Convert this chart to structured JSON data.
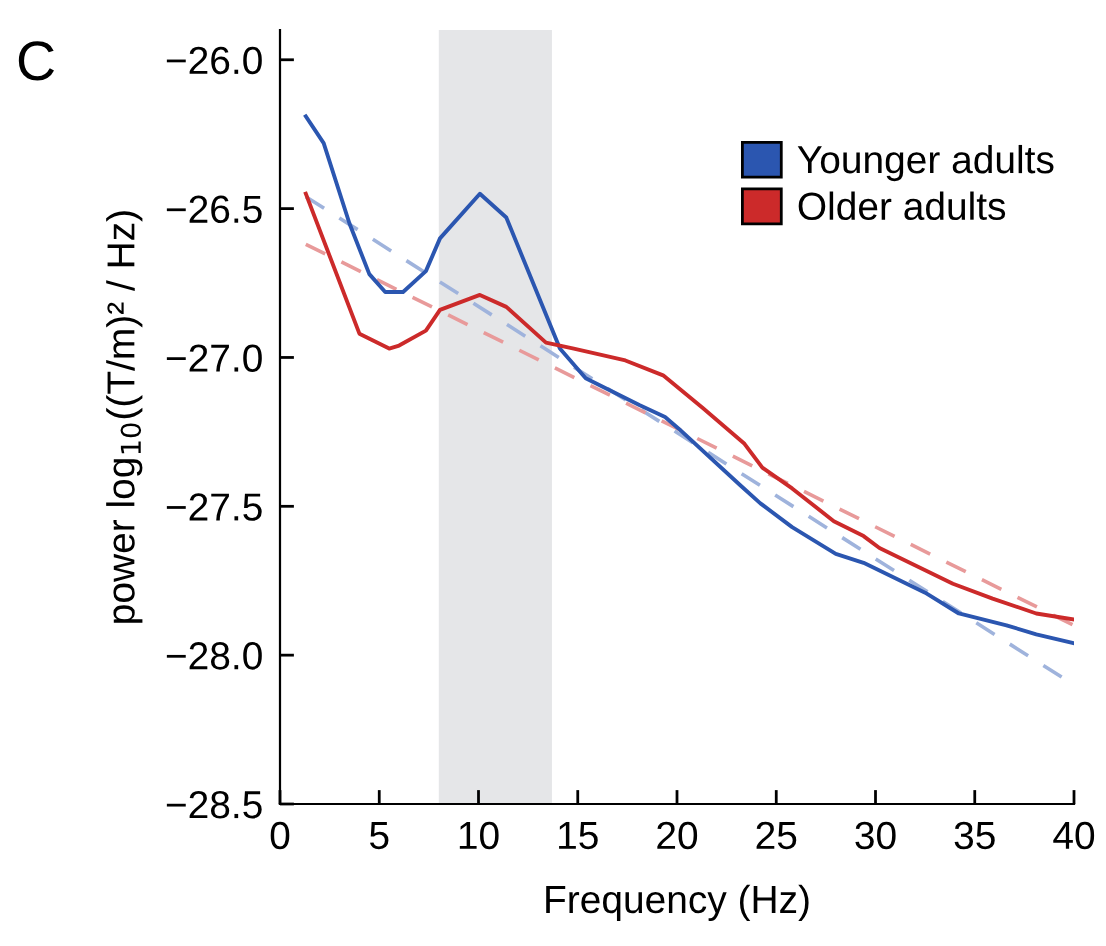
{
  "chart_data": {
    "type": "line",
    "xlabel": "Frequency (Hz)",
    "ylabel": "power log$_{10}$((T/m)² / Hz)",
    "annotations": [
      "C"
    ],
    "xlim": [
      0,
      40
    ],
    "ylim": [
      -28.5,
      -25.9
    ],
    "xticks": [
      0,
      5,
      10,
      15,
      20,
      25,
      30,
      35,
      40
    ],
    "yticks": [
      {
        "value": -26.0,
        "label": "−26.0"
      },
      {
        "value": -26.5,
        "label": "−26.5"
      },
      {
        "value": -27.0,
        "label": "−27.0"
      },
      {
        "value": -27.5,
        "label": "−27.5"
      },
      {
        "value": -28.0,
        "label": "−28.0"
      },
      {
        "value": -28.5,
        "label": "−28.5"
      }
    ],
    "grid": false,
    "legend": "top right",
    "line_style": "solid",
    "marker": "none",
    "bands": [
      {
        "axis": "x",
        "from": 8,
        "to": 13.7,
        "color": "#e5e6e8"
      }
    ],
    "series": [
      {
        "name": "Younger adults",
        "color": "#2b56b0",
        "x": [
          1.3,
          2.2,
          3.5,
          4.5,
          5.3,
          6.2,
          7.35,
          8.06,
          10.07,
          11.4,
          14.1,
          15.4,
          18.1,
          19.4,
          20.1,
          23.2,
          24.2,
          25.8,
          28,
          29.4,
          32.5,
          34.2,
          36.6,
          38.1,
          40
        ],
        "values": [
          -26.19,
          -26.28,
          -26.55,
          -26.72,
          -26.78,
          -26.78,
          -26.71,
          -26.6,
          -26.45,
          -26.53,
          -26.97,
          -27.07,
          -27.16,
          -27.2,
          -27.24,
          -27.43,
          -27.49,
          -27.57,
          -27.66,
          -27.69,
          -27.79,
          -27.86,
          -27.9,
          -27.93,
          -27.96
        ]
      },
      {
        "name": "Older adults",
        "color": "#cc2a2a",
        "x": [
          1.3,
          4.0,
          5.5,
          6.0,
          7.35,
          8.06,
          10.07,
          11.4,
          13.4,
          14.8,
          17.4,
          19.3,
          21.3,
          23.4,
          24.3,
          25.8,
          27.9,
          29.4,
          30.2,
          33.9,
          35.9,
          38.1,
          40
        ],
        "values": [
          -26.45,
          -26.92,
          -26.97,
          -26.96,
          -26.91,
          -26.84,
          -26.79,
          -26.83,
          -26.95,
          -26.97,
          -27.01,
          -27.06,
          -27.17,
          -27.29,
          -27.37,
          -27.44,
          -27.55,
          -27.6,
          -27.64,
          -27.76,
          -27.81,
          -27.86,
          -27.88
        ]
      },
      {
        "color": "#9fb3dc",
        "line_style": "dashed",
        "x": [
          1.3,
          40
        ],
        "values": [
          -26.46,
          -28.1
        ]
      },
      {
        "color": "#e89a9a",
        "line_style": "dashed",
        "x": [
          1.3,
          40
        ],
        "values": [
          -26.62,
          -27.9
        ]
      }
    ]
  }
}
